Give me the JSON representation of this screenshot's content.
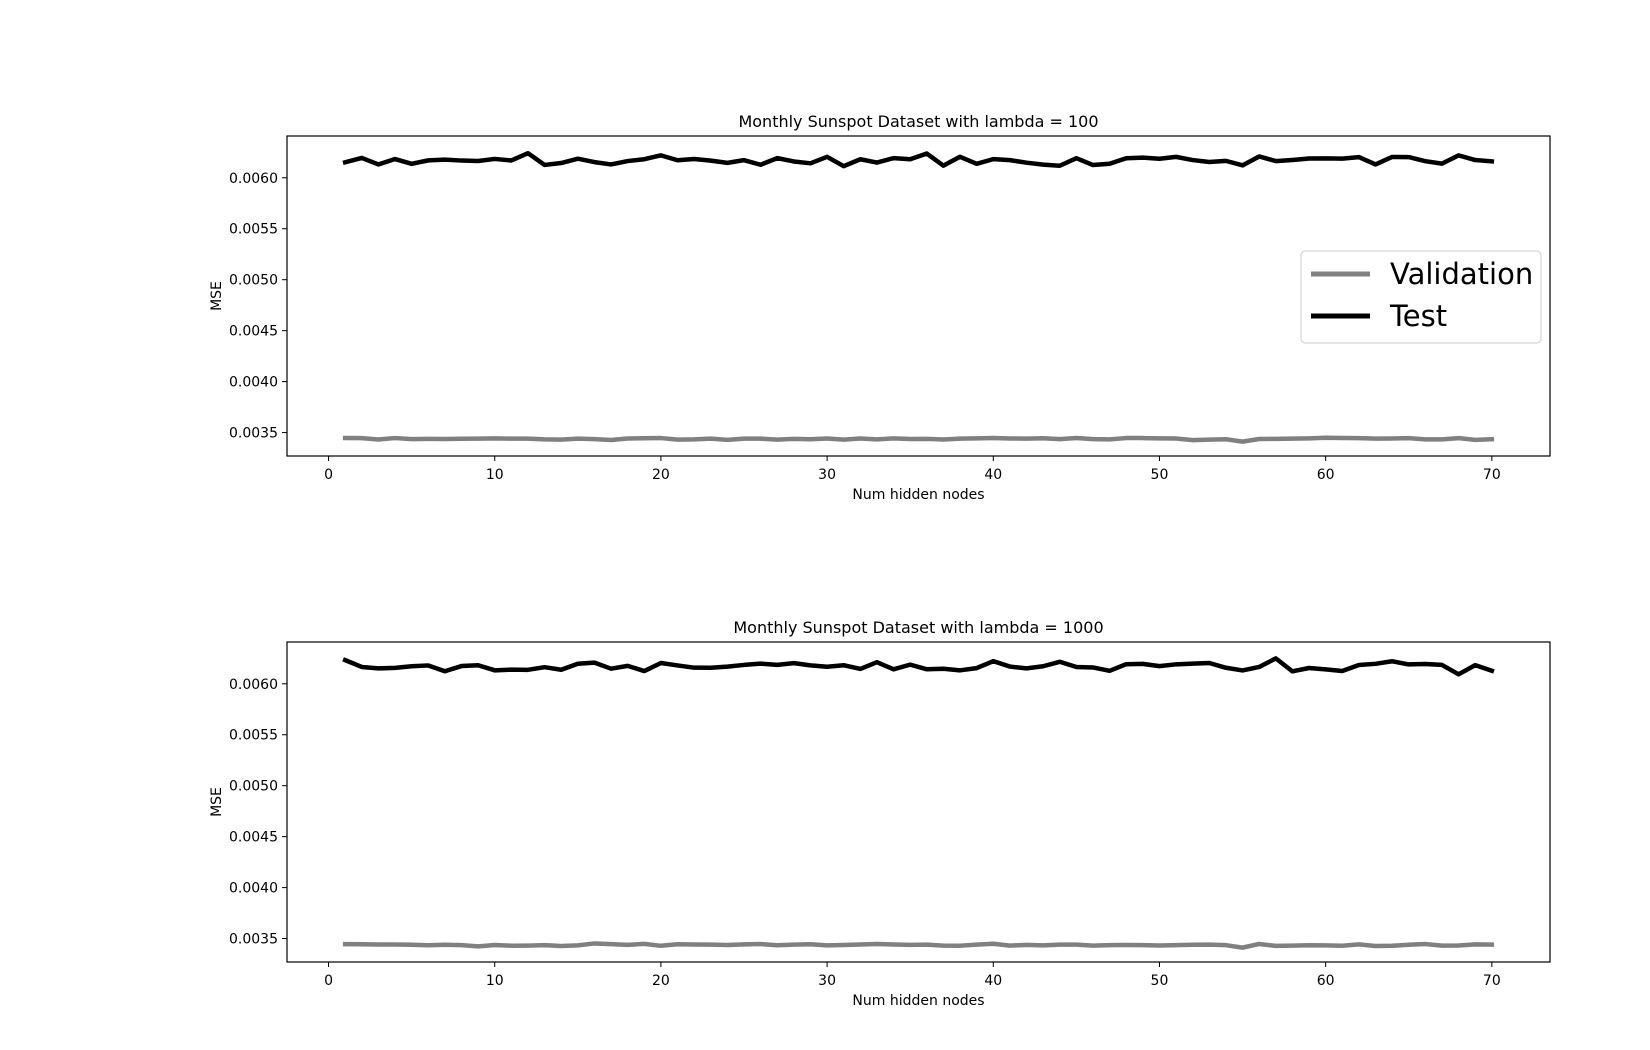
{
  "chart_data": [
    {
      "type": "line",
      "title": "Monthly Sunspot Dataset with lambda = 100",
      "xlabel": "Num hidden nodes",
      "ylabel": "MSE",
      "xlim": [
        -2.5,
        73.5
      ],
      "ylim": [
        0.00327,
        0.00641
      ],
      "xticks": [
        0,
        10,
        20,
        30,
        40,
        50,
        60,
        70
      ],
      "yticks": [
        0.0035,
        0.004,
        0.0045,
        0.005,
        0.0055,
        0.006
      ],
      "ytick_labels": [
        "0.0035",
        "0.0040",
        "0.0045",
        "0.0050",
        "0.0055",
        "0.0060"
      ],
      "grid": false,
      "legend": "center-right",
      "x": [
        1,
        2,
        3,
        4,
        5,
        6,
        7,
        8,
        9,
        10,
        11,
        12,
        13,
        14,
        15,
        16,
        17,
        18,
        19,
        20,
        21,
        22,
        23,
        24,
        25,
        26,
        27,
        28,
        29,
        30,
        31,
        32,
        33,
        34,
        35,
        36,
        37,
        38,
        39,
        40,
        41,
        42,
        43,
        44,
        45,
        46,
        47,
        48,
        49,
        50,
        51,
        52,
        53,
        54,
        55,
        56,
        57,
        58,
        59,
        60,
        61,
        62,
        63,
        64,
        65,
        66,
        67,
        68,
        69,
        70
      ],
      "series": [
        {
          "name": "Validation",
          "color": "#808080",
          "values": [
            0.003446,
            0.003445,
            0.003432,
            0.003446,
            0.003436,
            0.003438,
            0.003437,
            0.003439,
            0.003441,
            0.003443,
            0.00344,
            0.003441,
            0.003433,
            0.003431,
            0.003441,
            0.003436,
            0.003427,
            0.003442,
            0.003444,
            0.003446,
            0.003431,
            0.003433,
            0.003441,
            0.003428,
            0.00344,
            0.00344,
            0.003431,
            0.003438,
            0.003434,
            0.003442,
            0.003431,
            0.003442,
            0.003433,
            0.003443,
            0.003437,
            0.003438,
            0.003432,
            0.003441,
            0.003443,
            0.003447,
            0.003442,
            0.003441,
            0.003444,
            0.003436,
            0.003447,
            0.003436,
            0.003433,
            0.003446,
            0.003446,
            0.003443,
            0.003442,
            0.003426,
            0.003431,
            0.003434,
            0.003411,
            0.003437,
            0.003438,
            0.00344,
            0.003443,
            0.003449,
            0.003446,
            0.003445,
            0.00344,
            0.003442,
            0.003445,
            0.003433,
            0.003433,
            0.003445,
            0.003428,
            0.003435
          ]
        },
        {
          "name": "Test",
          "color": "#000000",
          "values": [
            0.006152,
            0.006195,
            0.006131,
            0.006184,
            0.006137,
            0.006171,
            0.006178,
            0.006169,
            0.006165,
            0.006185,
            0.00617,
            0.006241,
            0.006126,
            0.006145,
            0.006187,
            0.006154,
            0.006131,
            0.006164,
            0.006182,
            0.00622,
            0.006172,
            0.006184,
            0.006168,
            0.006146,
            0.006173,
            0.006128,
            0.006193,
            0.00616,
            0.006142,
            0.006206,
            0.006114,
            0.006182,
            0.006149,
            0.006193,
            0.006182,
            0.006238,
            0.006119,
            0.006206,
            0.006137,
            0.006183,
            0.006173,
            0.006148,
            0.006129,
            0.006118,
            0.006192,
            0.006125,
            0.006138,
            0.006192,
            0.006198,
            0.006187,
            0.006205,
            0.006174,
            0.006155,
            0.006166,
            0.006122,
            0.006209,
            0.006164,
            0.006175,
            0.006189,
            0.006191,
            0.006188,
            0.006203,
            0.006131,
            0.006204,
            0.006203,
            0.006163,
            0.006139,
            0.00622,
            0.006174,
            0.006161
          ]
        }
      ]
    },
    {
      "type": "line",
      "title": "Monthly Sunspot Dataset with lambda = 1000",
      "xlabel": "Num hidden nodes",
      "ylabel": "MSE",
      "xlim": [
        -2.5,
        73.5
      ],
      "ylim": [
        0.00327,
        0.00641
      ],
      "xticks": [
        0,
        10,
        20,
        30,
        40,
        50,
        60,
        70
      ],
      "yticks": [
        0.0035,
        0.004,
        0.0045,
        0.005,
        0.0055,
        0.006
      ],
      "ytick_labels": [
        "0.0035",
        "0.0040",
        "0.0045",
        "0.0050",
        "0.0055",
        "0.0060"
      ],
      "grid": false,
      "x": [
        1,
        2,
        3,
        4,
        5,
        6,
        7,
        8,
        9,
        10,
        11,
        12,
        13,
        14,
        15,
        16,
        17,
        18,
        19,
        20,
        21,
        22,
        23,
        24,
        25,
        26,
        27,
        28,
        29,
        30,
        31,
        32,
        33,
        34,
        35,
        36,
        37,
        38,
        39,
        40,
        41,
        42,
        43,
        44,
        45,
        46,
        47,
        48,
        49,
        50,
        51,
        52,
        53,
        54,
        55,
        56,
        57,
        58,
        59,
        60,
        61,
        62,
        63,
        64,
        65,
        66,
        67,
        68,
        69,
        70
      ],
      "series": [
        {
          "color": "#808080",
          "values": [
            0.003445,
            0.003444,
            0.003442,
            0.003442,
            0.003439,
            0.003434,
            0.003439,
            0.003436,
            0.003423,
            0.003437,
            0.00343,
            0.003431,
            0.003435,
            0.003427,
            0.003433,
            0.003452,
            0.003445,
            0.003438,
            0.003448,
            0.003429,
            0.003444,
            0.003442,
            0.003441,
            0.003437,
            0.003443,
            0.003446,
            0.003434,
            0.003441,
            0.003444,
            0.003433,
            0.003437,
            0.003442,
            0.003447,
            0.003442,
            0.003438,
            0.00344,
            0.003431,
            0.00343,
            0.00344,
            0.003449,
            0.003431,
            0.003438,
            0.003433,
            0.003441,
            0.00344,
            0.003431,
            0.003436,
            0.003437,
            0.003436,
            0.003432,
            0.003436,
            0.003439,
            0.003441,
            0.003435,
            0.003411,
            0.003447,
            0.003428,
            0.003431,
            0.003434,
            0.003433,
            0.003429,
            0.003443,
            0.003427,
            0.003429,
            0.003439,
            0.003446,
            0.003431,
            0.003432,
            0.003443,
            0.003441
          ]
        },
        {
          "color": "#000000",
          "values": [
            0.006232,
            0.006165,
            0.006151,
            0.006156,
            0.006172,
            0.00618,
            0.006123,
            0.006174,
            0.006182,
            0.006132,
            0.006139,
            0.006137,
            0.006163,
            0.006138,
            0.006197,
            0.006208,
            0.006148,
            0.006176,
            0.006125,
            0.006204,
            0.00618,
            0.006158,
            0.006157,
            0.006168,
            0.006185,
            0.006198,
            0.006186,
            0.006203,
            0.006181,
            0.006167,
            0.006182,
            0.006146,
            0.006212,
            0.006142,
            0.006188,
            0.006142,
            0.006148,
            0.006132,
            0.006154,
            0.006222,
            0.006169,
            0.006151,
            0.006172,
            0.006216,
            0.006165,
            0.00616,
            0.006127,
            0.006192,
            0.006195,
            0.006173,
            0.006191,
            0.006198,
            0.006204,
            0.006157,
            0.006131,
            0.006165,
            0.006249,
            0.006122,
            0.006155,
            0.006141,
            0.006125,
            0.006184,
            0.006196,
            0.006221,
            0.00619,
            0.006194,
            0.006185,
            0.006093,
            0.006183,
            0.006128
          ]
        }
      ]
    }
  ]
}
